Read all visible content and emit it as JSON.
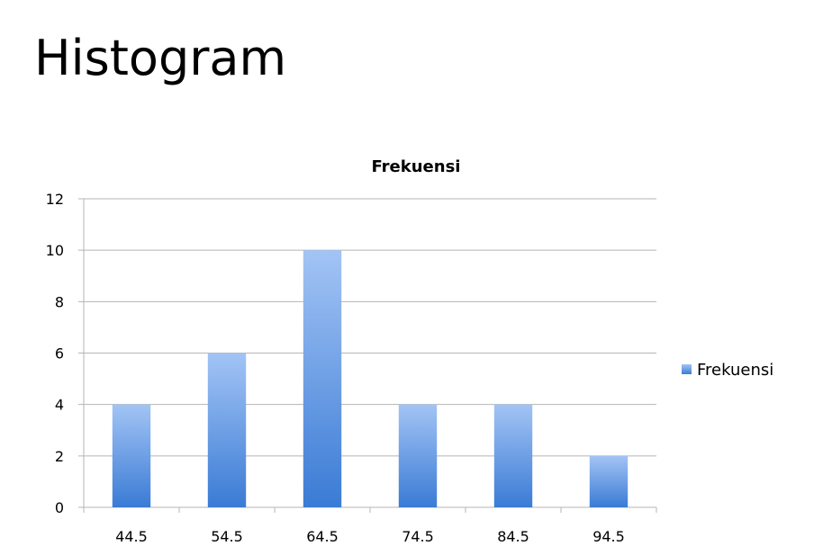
{
  "slide": {
    "title": "Histogram"
  },
  "chart_data": {
    "type": "bar",
    "title": "Frekuensi",
    "categories": [
      "44.5",
      "54.5",
      "64.5",
      "74.5",
      "84.5",
      "94.5"
    ],
    "series": [
      {
        "name": "Frekuensi",
        "values": [
          4,
          6,
          10,
          4,
          4,
          2
        ]
      }
    ],
    "xlabel": "",
    "ylabel": "",
    "ylim": [
      0,
      12
    ],
    "yticks": [
      0,
      2,
      4,
      6,
      8,
      10,
      12
    ],
    "grid": true,
    "legend": "right",
    "colors": {
      "bar_top": "#a3c4f5",
      "bar_bottom": "#3a7bd5",
      "grid": "#b5b5b5"
    }
  }
}
